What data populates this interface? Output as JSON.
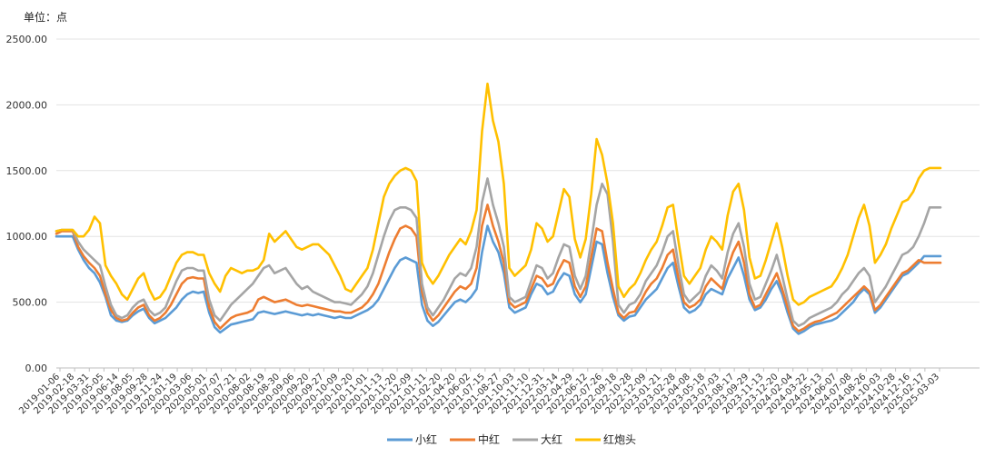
{
  "unit_label": "单位：点",
  "chart_data": {
    "type": "line",
    "title": "",
    "xlabel": "",
    "ylabel": "单位：点",
    "ylim": [
      0,
      2500
    ],
    "yticks": [
      0,
      500,
      1000,
      1500,
      2000,
      2500
    ],
    "ytick_labels": [
      "0.00",
      "500.00",
      "1000.00",
      "1500.00",
      "2000.00",
      "2500.00"
    ],
    "grid": "horizontal",
    "legend": "bottom-center",
    "x_tick_labels": [
      "2019-01-06",
      "2019-02-18",
      "2019-03-31",
      "2019-05-05",
      "2019-06-14",
      "2019-08-05",
      "2019-09-28",
      "2019-11-24",
      "2020-01-19",
      "2020-03-06",
      "2020-05-01",
      "2020-07-07",
      "2020-07-21",
      "2020-08-02",
      "2020-08-19",
      "2020-08-30",
      "2020-09-06",
      "2020-09-20",
      "2020-09-27",
      "2020-10-09",
      "2020-10-20",
      "2020-11-01",
      "2020-11-13",
      "2020-11-20",
      "2020-12-09",
      "2021-01-11",
      "2021-02-20",
      "2021-04-20",
      "2021-06-02",
      "2021-07-15",
      "2021-08-27",
      "2021-10-03",
      "2021-11-10",
      "2021-12-31",
      "2022-03-14",
      "2022-04-29",
      "2022-06-12",
      "2022-07-26",
      "2022-09-18",
      "2022-10-28",
      "2022-12-09",
      "2023-01-21",
      "2023-02-28",
      "2023-04-08",
      "2023-05-18",
      "2023-07-03",
      "2023-08-17",
      "2023-09-29",
      "2023-11-13",
      "2023-12-20",
      "2024-02-04",
      "2024-03-22",
      "2024-05-13",
      "2024-06-07",
      "2024-07-08",
      "2024-08-26",
      "2024-10-03",
      "2024-10-28",
      "2024-12-16",
      "2025-02-17",
      "2025-03-03"
    ],
    "series": [
      {
        "name": "小红",
        "color": "#5b9bd5",
        "values": [
          1000,
          1000,
          1000,
          1000,
          900,
          820,
          760,
          720,
          650,
          540,
          400,
          360,
          350,
          360,
          400,
          430,
          450,
          380,
          340,
          360,
          380,
          420,
          460,
          520,
          560,
          580,
          570,
          580,
          420,
          310,
          270,
          300,
          330,
          340,
          350,
          360,
          370,
          420,
          430,
          420,
          410,
          420,
          430,
          420,
          410,
          400,
          410,
          400,
          410,
          400,
          390,
          380,
          390,
          380,
          380,
          400,
          420,
          440,
          470,
          520,
          600,
          680,
          760,
          820,
          840,
          820,
          800,
          480,
          360,
          320,
          350,
          400,
          450,
          500,
          520,
          500,
          540,
          600,
          880,
          1080,
          960,
          880,
          720,
          460,
          420,
          440,
          460,
          560,
          640,
          620,
          560,
          580,
          660,
          720,
          700,
          560,
          500,
          560,
          760,
          960,
          940,
          720,
          540,
          400,
          360,
          390,
          400,
          460,
          520,
          560,
          600,
          680,
          760,
          800,
          620,
          460,
          420,
          440,
          480,
          560,
          600,
          580,
          560,
          680,
          760,
          840,
          700,
          520,
          440,
          460,
          520,
          600,
          660,
          560,
          420,
          300,
          260,
          280,
          310,
          330,
          340,
          350,
          360,
          380,
          420,
          460,
          500,
          560,
          600,
          560,
          420,
          460,
          520,
          580,
          640,
          700,
          720,
          760,
          800,
          850,
          850,
          850,
          850
        ]
      },
      {
        "name": "中红",
        "color": "#ed7d31",
        "values": [
          1020,
          1040,
          1040,
          1040,
          920,
          850,
          800,
          760,
          700,
          560,
          440,
          380,
          360,
          370,
          420,
          460,
          480,
          400,
          360,
          380,
          420,
          480,
          560,
          640,
          680,
          690,
          680,
          680,
          460,
          350,
          300,
          340,
          380,
          400,
          410,
          420,
          440,
          520,
          540,
          520,
          500,
          510,
          520,
          500,
          480,
          470,
          480,
          470,
          460,
          450,
          440,
          430,
          430,
          420,
          420,
          440,
          460,
          500,
          560,
          640,
          760,
          880,
          980,
          1060,
          1080,
          1060,
          1000,
          580,
          420,
          360,
          400,
          460,
          520,
          580,
          620,
          600,
          640,
          760,
          1080,
          1240,
          1080,
          960,
          800,
          500,
          460,
          480,
          500,
          600,
          700,
          680,
          620,
          640,
          740,
          820,
          800,
          620,
          540,
          620,
          840,
          1060,
          1040,
          800,
          600,
          420,
          380,
          420,
          430,
          500,
          580,
          640,
          680,
          760,
          860,
          900,
          680,
          500,
          460,
          480,
          520,
          620,
          680,
          640,
          600,
          760,
          880,
          960,
          800,
          560,
          460,
          480,
          560,
          640,
          720,
          600,
          460,
          320,
          280,
          300,
          330,
          350,
          360,
          380,
          400,
          420,
          460,
          500,
          540,
          580,
          620,
          580,
          440,
          480,
          540,
          600,
          660,
          720,
          740,
          780,
          820,
          800,
          800,
          800,
          800
        ]
      },
      {
        "name": "大红",
        "color": "#a5a5a5",
        "values": [
          1040,
          1050,
          1050,
          1050,
          960,
          900,
          860,
          820,
          780,
          620,
          480,
          400,
          380,
          400,
          460,
          500,
          520,
          440,
          400,
          420,
          460,
          560,
          660,
          740,
          760,
          760,
          740,
          740,
          520,
          400,
          360,
          420,
          480,
          520,
          560,
          600,
          640,
          700,
          760,
          780,
          720,
          740,
          760,
          700,
          640,
          600,
          620,
          580,
          560,
          540,
          520,
          500,
          500,
          490,
          480,
          520,
          560,
          620,
          720,
          860,
          1000,
          1120,
          1200,
          1220,
          1220,
          1200,
          1140,
          640,
          460,
          400,
          460,
          520,
          600,
          680,
          720,
          700,
          760,
          920,
          1260,
          1440,
          1240,
          1100,
          920,
          540,
          500,
          520,
          540,
          660,
          780,
          760,
          680,
          720,
          840,
          940,
          920,
          700,
          600,
          700,
          960,
          1240,
          1400,
          1320,
          960,
          480,
          420,
          480,
          500,
          560,
          660,
          720,
          780,
          880,
          1000,
          1040,
          780,
          560,
          500,
          540,
          580,
          700,
          780,
          740,
          680,
          880,
          1020,
          1100,
          920,
          640,
          520,
          540,
          640,
          740,
          860,
          700,
          520,
          360,
          320,
          340,
          380,
          400,
          420,
          440,
          460,
          500,
          560,
          600,
          660,
          720,
          760,
          700,
          500,
          560,
          620,
          700,
          780,
          860,
          880,
          920,
          1000,
          1100,
          1220,
          1220,
          1220
        ]
      },
      {
        "name": "红炮头",
        "color": "#ffc000",
        "values": [
          1040,
          1050,
          1050,
          1050,
          1000,
          1000,
          1050,
          1150,
          1100,
          780,
          700,
          640,
          560,
          520,
          600,
          680,
          720,
          600,
          520,
          540,
          600,
          700,
          800,
          860,
          880,
          880,
          860,
          860,
          720,
          640,
          580,
          700,
          760,
          740,
          720,
          740,
          740,
          760,
          820,
          1020,
          960,
          1000,
          1040,
          980,
          920,
          900,
          920,
          940,
          940,
          900,
          860,
          780,
          700,
          600,
          580,
          640,
          700,
          760,
          900,
          1100,
          1300,
          1400,
          1460,
          1500,
          1520,
          1500,
          1420,
          800,
          700,
          640,
          700,
          780,
          860,
          920,
          980,
          940,
          1040,
          1200,
          1800,
          2160,
          1880,
          1720,
          1400,
          760,
          700,
          740,
          780,
          900,
          1100,
          1060,
          960,
          1000,
          1180,
          1360,
          1300,
          980,
          840,
          980,
          1320,
          1740,
          1620,
          1400,
          1100,
          620,
          540,
          600,
          640,
          720,
          820,
          900,
          960,
          1080,
          1220,
          1240,
          960,
          700,
          640,
          700,
          760,
          900,
          1000,
          960,
          900,
          1160,
          1340,
          1400,
          1200,
          840,
          680,
          700,
          820,
          960,
          1100,
          920,
          700,
          520,
          480,
          500,
          540,
          560,
          580,
          600,
          620,
          680,
          760,
          860,
          1000,
          1140,
          1240,
          1080,
          800,
          860,
          940,
          1060,
          1160,
          1260,
          1280,
          1340,
          1440,
          1500,
          1520,
          1520,
          1520
        ]
      }
    ]
  }
}
